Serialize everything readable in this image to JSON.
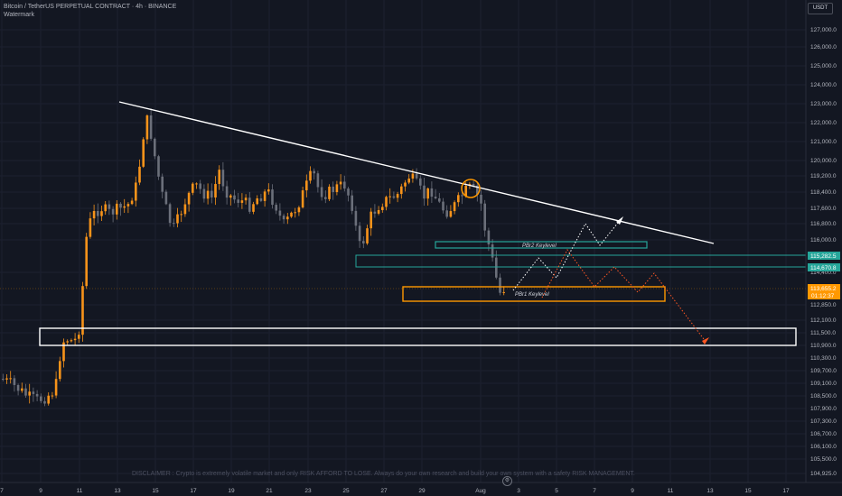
{
  "header": {
    "symbol": "Bitcoin / TetherUS PERPETUAL CONTRACT · 4h · BINANCE",
    "watermark": "Watermark"
  },
  "currency_button": "USDT",
  "disclaimer": "DISCLAIMER : Crypto is extremely volatile market and only RISK AFFORD TO LOSE. Always do your own research and build your own system with a safety RISK MANAGEMENT.",
  "price_axis": {
    "labels": [
      "127,000.0",
      "126,000.0",
      "125,000.0",
      "124,000.0",
      "123,000.0",
      "122,000.0",
      "121,000.0",
      "120,000.0",
      "119,200.0",
      "118,400.0",
      "117,600.0",
      "116,800.0",
      "116,000.0",
      "114,400.0",
      "112,850.0",
      "112,100.0",
      "111,500.0",
      "110,900.0",
      "110,300.0",
      "109,700.0",
      "109,100.0",
      "108,500.0",
      "107,900.0",
      "107,300.0",
      "106,700.0",
      "106,100.0",
      "105,500.0",
      "104,925.0"
    ],
    "badges": [
      {
        "label": "115,282.5",
        "color": "#26a69a"
      },
      {
        "label": "114,670.8",
        "color": "#26a69a"
      },
      {
        "label": "113,655.2",
        "color": "#ff9800"
      },
      {
        "label": "01:12:37",
        "color": "#ff9800"
      }
    ]
  },
  "time_axis": {
    "labels": [
      "7",
      "9",
      "11",
      "13",
      "15",
      "17",
      "19",
      "21",
      "23",
      "25",
      "27",
      "29",
      "Aug",
      "3",
      "5",
      "7",
      "9",
      "11",
      "13",
      "15",
      "17"
    ]
  },
  "annotations": {
    "pbr2_label": "PBr2 Keylevel",
    "pbr1_label": "PBr1 Keylevel"
  },
  "colors": {
    "background": "#131722",
    "up_candle": "#f7931a",
    "down_candle": "#6b6f7a",
    "teal": "#26a69a",
    "orange": "#ff9800",
    "trendline": "#ffffff"
  },
  "gear_icon": "⚙"
}
